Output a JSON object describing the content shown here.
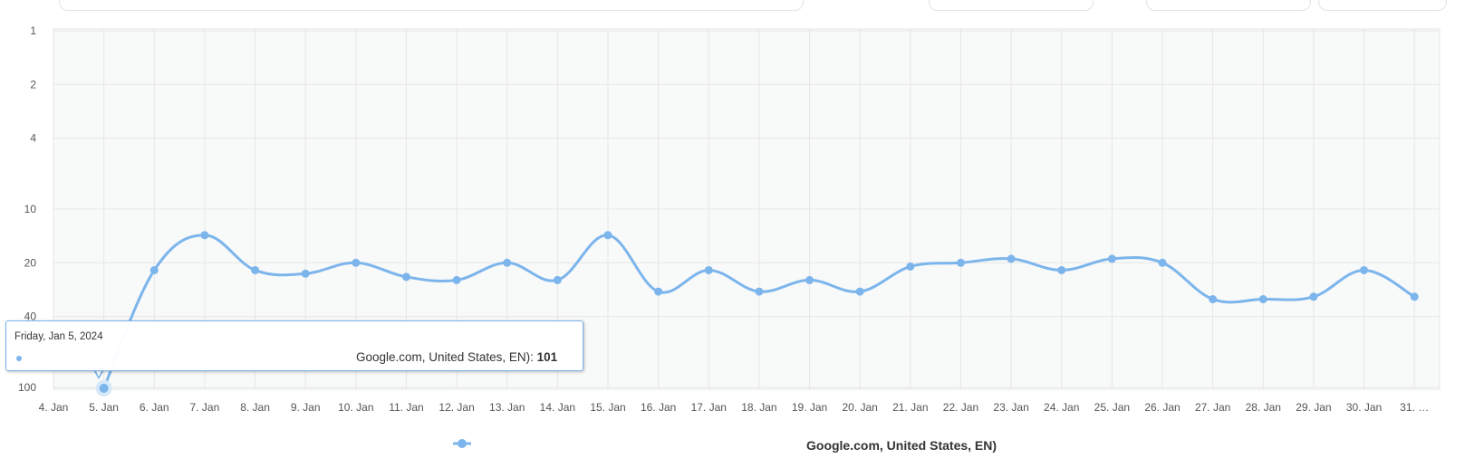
{
  "chart_data": {
    "type": "line",
    "title": "",
    "xlabel": "",
    "ylabel": "",
    "y_scale": "log",
    "y_reversed": true,
    "ylim": [
      1,
      100
    ],
    "y_ticks": [
      "1",
      "2",
      "4",
      "10",
      "20",
      "40",
      "100"
    ],
    "grid": true,
    "categories": [
      "4. Jan",
      "5. Jan",
      "6. Jan",
      "7. Jan",
      "8. Jan",
      "9. Jan",
      "10. Jan",
      "11. Jan",
      "12. Jan",
      "13. Jan",
      "14. Jan",
      "15. Jan",
      "16. Jan",
      "17. Jan",
      "18. Jan",
      "19. Jan",
      "20. Jan",
      "21. Jan",
      "22. Jan",
      "23. Jan",
      "24. Jan",
      "25. Jan",
      "26. Jan",
      "27. Jan",
      "28. Jan",
      "29. Jan",
      "30. Jan",
      "31. …"
    ],
    "series": [
      {
        "name": "Google.com, United States, EN)",
        "color": "#7cb5ec",
        "values": [
          null,
          101,
          22,
          14,
          22,
          23,
          20,
          24,
          25,
          20,
          25,
          14,
          29,
          22,
          29,
          25,
          29,
          21,
          20,
          19,
          22,
          19,
          20,
          32,
          32,
          31,
          22,
          31
        ]
      }
    ],
    "legend_position": "bottom"
  },
  "tooltip": {
    "date": "Friday, Jan 5, 2024",
    "series_text": "Google.com, United States, EN): ",
    "value": "101"
  },
  "legend": {
    "label": "Google.com, United States, EN)"
  }
}
